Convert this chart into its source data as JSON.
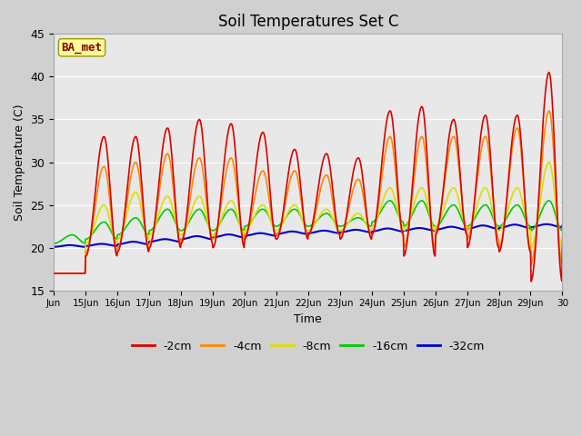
{
  "title": "Soil Temperatures Set C",
  "xlabel": "Time",
  "ylabel": "Soil Temperature (C)",
  "ylim": [
    15,
    45
  ],
  "xlim": [
    0,
    16
  ],
  "annotation": "BA_met",
  "fig_bg_color": "#d0d0d0",
  "plot_bg_color": "#e8e8e8",
  "series": {
    "-2cm": {
      "color": "#dd0000",
      "lw": 1.2
    },
    "-4cm": {
      "color": "#ff8800",
      "lw": 1.2
    },
    "-8cm": {
      "color": "#dddd00",
      "lw": 1.2
    },
    "-16cm": {
      "color": "#00cc00",
      "lw": 1.2
    },
    "-32cm": {
      "color": "#0000cc",
      "lw": 1.5
    }
  },
  "xtick_labels": [
    "Jun",
    "15Jun",
    "16Jun",
    "17Jun",
    "18Jun",
    "19Jun",
    "20Jun",
    "21Jun",
    "22Jun",
    "23Jun",
    "24Jun",
    "25Jun",
    "26Jun",
    "27Jun",
    "28Jun",
    "29Jun",
    "30"
  ],
  "ytick_labels": [
    15,
    20,
    25,
    30,
    35,
    40,
    45
  ],
  "legend_labels": [
    "-2cm",
    "-4cm",
    "-8cm",
    "-16cm",
    "-32cm"
  ],
  "legend_colors": [
    "#dd0000",
    "#ff8800",
    "#dddd00",
    "#00cc00",
    "#0000cc"
  ],
  "grid_color": "#ffffff",
  "grid_alpha": 1.0
}
